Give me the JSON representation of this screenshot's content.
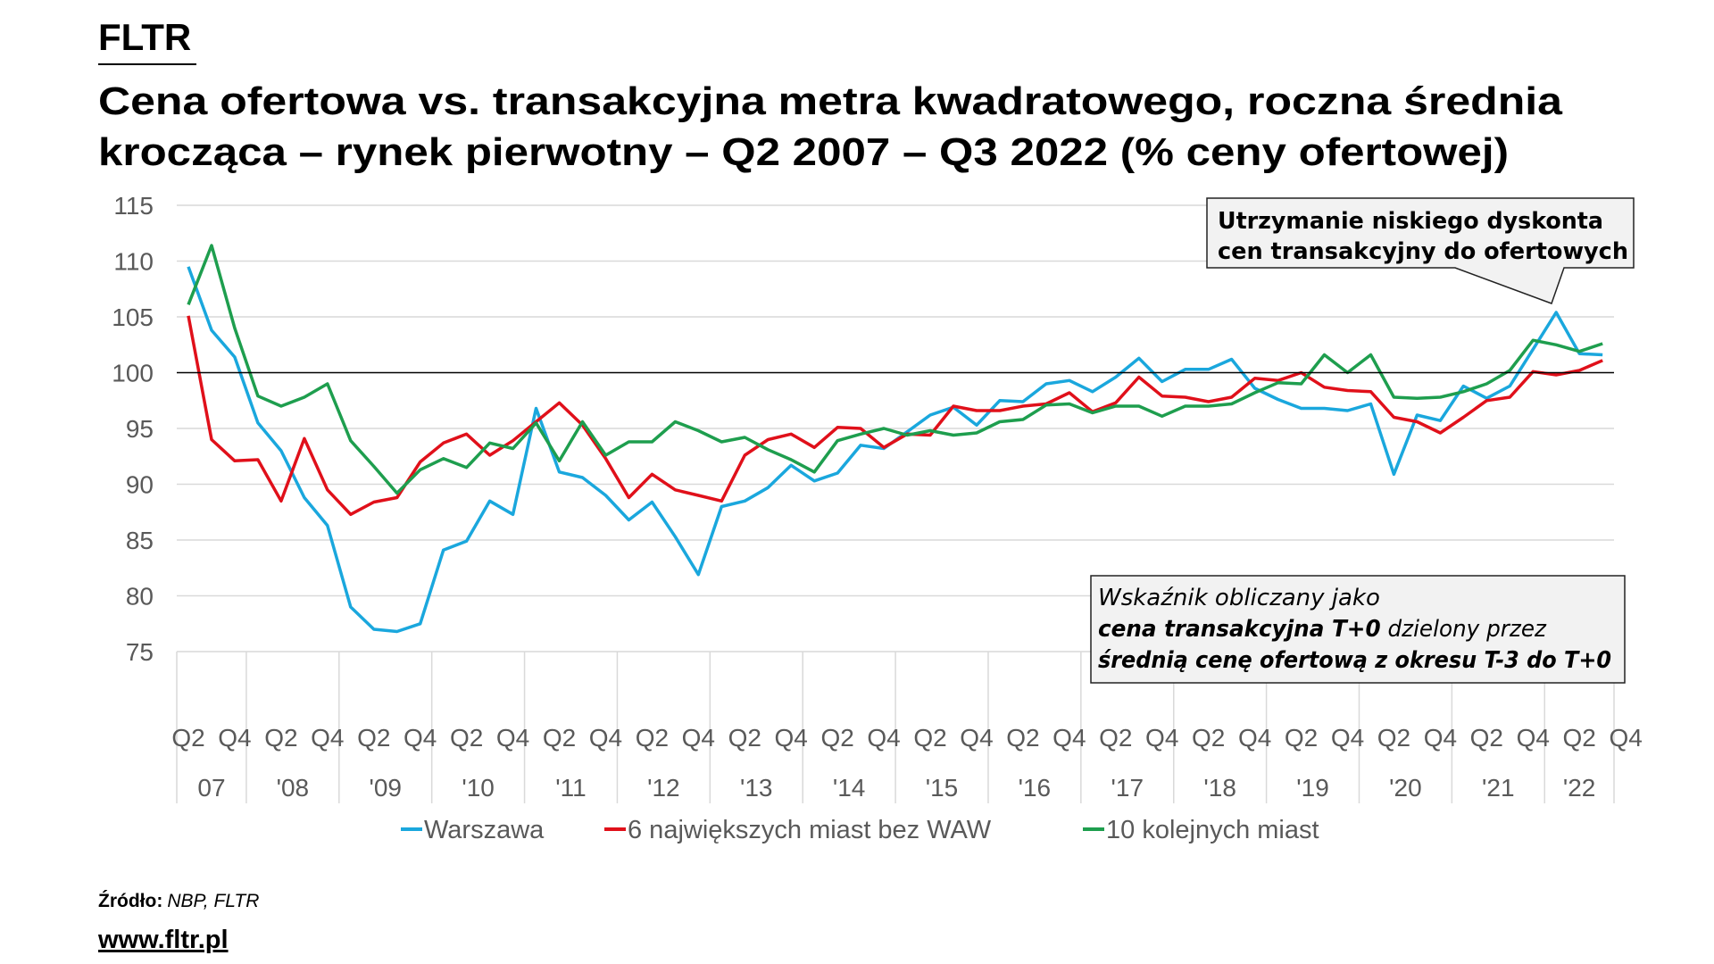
{
  "brand": "FLTR",
  "title_line1": "Cena ofertowa vs. transakcyjna metra kwadratowego, roczna średnia",
  "title_line2": "krocząca – rynek pierwotny – Q2 2007 – Q3 2022 (% ceny ofertowej)",
  "callout": {
    "line1": "Utrzymanie niskiego dyskonta",
    "line2": "cen  transakcyjny do ofertowych"
  },
  "note": {
    "line1": "Wskaźnik obliczany jako",
    "line2_bold": "cena transakcyjna T+0",
    "line2_rest": " dzielony przez",
    "line3_bold": "średnią cenę ofertową z okresu T-3 do T+0"
  },
  "source_label": "Źródło:",
  "source_value": "NBP, FLTR",
  "website": "www.fltr.pl",
  "chart_data": {
    "type": "line",
    "title": "Cena ofertowa vs. transakcyjna metra kwadratowego, roczna średnia krocząca – rynek pierwotny – Q2 2007 – Q3 2022 (% ceny ofertowej)",
    "xlabel": "",
    "ylabel": "",
    "ylim": [
      75,
      115
    ],
    "yticks": [
      75,
      80,
      85,
      90,
      95,
      100,
      105,
      110,
      115
    ],
    "reference_line": 100,
    "grid": true,
    "legend_position": "bottom",
    "quarter_labels": [
      "Q2",
      "Q4",
      "Q2",
      "Q4",
      "Q2",
      "Q4",
      "Q2",
      "Q4",
      "Q2",
      "Q4",
      "Q2",
      "Q4",
      "Q2",
      "Q4",
      "Q2",
      "Q4",
      "Q2",
      "Q4",
      "Q2",
      "Q4",
      "Q2",
      "Q4",
      "Q2",
      "Q4",
      "Q2",
      "Q4",
      "Q2",
      "Q4",
      "Q2",
      "Q4",
      "Q2",
      "Q4"
    ],
    "year_labels": [
      "07",
      "'08",
      "'09",
      "'10",
      "'11",
      "'12",
      "'13",
      "'14",
      "'15",
      "'16",
      "'17",
      "'18",
      "'19",
      "'20",
      "'21",
      "'22"
    ],
    "x_start": "Q2 2007",
    "x_end": "Q3 2022",
    "series": [
      {
        "name": "Warszawa",
        "color": "#1AA7DD",
        "values": [
          109.5,
          103.8,
          101.4,
          95.5,
          93,
          88.8,
          86.3,
          79,
          77,
          76.8,
          77.5,
          84.1,
          84.9,
          88.5,
          87.3,
          96.8,
          91.1,
          90.6,
          89,
          86.8,
          88.4,
          85.3,
          81.9,
          88,
          88.5,
          89.7,
          91.7,
          90.3,
          91,
          93.5,
          93.2,
          94.7,
          96.2,
          96.9,
          95.3,
          97.5,
          97.4,
          99,
          99.3,
          98.3,
          99.6,
          101.3,
          99.2,
          100.3,
          100.3,
          101.2,
          98.6,
          97.6,
          96.8,
          96.8,
          96.6,
          97.2,
          90.9,
          96.2,
          95.7,
          98.8,
          97.7,
          98.8,
          102.1,
          105.4,
          101.7,
          101.6
        ]
      },
      {
        "name": "6 największych miast bez WAW",
        "color": "#E0101A",
        "values": [
          105.1,
          94,
          92.1,
          92.2,
          88.5,
          94.1,
          89.5,
          87.3,
          88.4,
          88.8,
          92,
          93.7,
          94.5,
          92.6,
          93.9,
          95.6,
          97.3,
          95.3,
          92.3,
          88.8,
          90.9,
          89.5,
          89,
          88.5,
          92.6,
          94,
          94.5,
          93.3,
          95.1,
          95,
          93.3,
          94.5,
          94.4,
          97,
          96.6,
          96.6,
          97,
          97.2,
          98.2,
          96.5,
          97.3,
          99.6,
          97.9,
          97.8,
          97.4,
          97.8,
          99.5,
          99.3,
          100,
          98.7,
          98.4,
          98.3,
          96,
          95.6,
          94.6,
          96,
          97.5,
          97.8,
          100.1,
          99.8,
          100.2,
          101.1
        ]
      },
      {
        "name": "10 kolejnych miast",
        "color": "#1E9E4E",
        "values": [
          106.1,
          111.4,
          104,
          97.9,
          97,
          97.8,
          99,
          93.9,
          91.6,
          89.2,
          91.3,
          92.3,
          91.5,
          93.7,
          93.2,
          95.5,
          92.1,
          95.6,
          92.6,
          93.8,
          93.8,
          95.6,
          94.8,
          93.8,
          94.2,
          93.1,
          92.2,
          91.1,
          93.9,
          94.5,
          95,
          94.4,
          94.8,
          94.4,
          94.6,
          95.6,
          95.8,
          97.1,
          97.2,
          96.4,
          97,
          97,
          96.1,
          97,
          97,
          97.2,
          98.2,
          99.1,
          99,
          101.6,
          100,
          101.6,
          97.8,
          97.7,
          97.8,
          98.3,
          99,
          100.2,
          102.9,
          102.5,
          101.9,
          102.6
        ]
      }
    ]
  }
}
